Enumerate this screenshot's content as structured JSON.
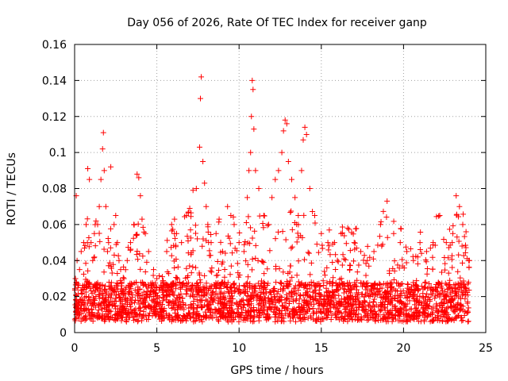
{
  "chart_data": {
    "type": "scatter",
    "title": "Day 056 of 2026, Rate Of TEC Index for receiver ganp",
    "xlabel": "GPS time / hours",
    "ylabel": "ROTI / TECUs",
    "xlim": [
      0,
      25
    ],
    "ylim": [
      0,
      0.16
    ],
    "x_ticks": [
      0,
      5,
      10,
      15,
      20,
      25
    ],
    "x_tick_labels": [
      "0",
      "5",
      "10",
      "15",
      "20",
      "25"
    ],
    "y_ticks": [
      0,
      0.02,
      0.04,
      0.06,
      0.08,
      0.1,
      0.12,
      0.14,
      0.16
    ],
    "y_tick_labels": [
      "0",
      "0.02",
      "0.04",
      "0.06",
      "0.08",
      "0.1",
      "0.12",
      "0.14",
      "0.16"
    ],
    "grid": true,
    "marker": "+",
    "color": "#ff0000",
    "series": [
      {
        "name": "ROTI",
        "description_points": "representative sample of dense per-satellite ROTI points, hours vs TECU/min",
        "x": [
          0.05,
          0.1,
          0.15,
          0.2,
          0.3,
          0.4,
          0.55,
          0.7,
          0.8,
          0.9,
          1.0,
          1.1,
          1.2,
          1.3,
          1.4,
          1.5,
          1.6,
          1.7,
          1.75,
          1.8,
          1.9,
          2.0,
          2.2,
          2.4,
          2.5,
          2.6,
          2.7,
          2.8,
          3.0,
          3.2,
          3.4,
          3.6,
          3.8,
          3.9,
          4.0,
          4.1,
          4.3,
          4.5,
          4.8,
          5.0,
          5.3,
          5.6,
          5.9,
          6.2,
          6.5,
          6.8,
          7.0,
          7.2,
          7.4,
          7.6,
          7.65,
          7.7,
          7.8,
          7.9,
          8.0,
          8.1,
          8.3,
          8.6,
          9.0,
          9.3,
          9.5,
          9.7,
          10.0,
          10.3,
          10.5,
          10.6,
          10.7,
          10.75,
          10.8,
          10.85,
          10.9,
          11.0,
          11.2,
          11.5,
          11.8,
          12.0,
          12.2,
          12.4,
          12.6,
          12.7,
          12.8,
          12.9,
          13.0,
          13.2,
          13.4,
          13.6,
          13.8,
          13.9,
          14.0,
          14.1,
          14.3,
          14.6,
          15.0,
          15.4,
          15.8,
          16.2,
          16.6,
          17.0,
          17.4,
          17.8,
          18.2,
          18.6,
          19.0,
          19.4,
          19.8,
          20.2,
          20.6,
          21.0,
          21.4,
          21.8,
          22.2,
          22.6,
          23.0,
          23.2,
          23.4,
          23.6,
          23.8,
          24.0
        ],
        "y": [
          0.03,
          0.076,
          0.04,
          0.025,
          0.035,
          0.045,
          0.05,
          0.06,
          0.091,
          0.085,
          0.05,
          0.04,
          0.055,
          0.062,
          0.06,
          0.07,
          0.085,
          0.102,
          0.111,
          0.09,
          0.07,
          0.045,
          0.092,
          0.06,
          0.065,
          0.05,
          0.04,
          0.035,
          0.03,
          0.04,
          0.05,
          0.06,
          0.088,
          0.086,
          0.076,
          0.063,
          0.055,
          0.045,
          0.035,
          0.03,
          0.025,
          0.045,
          0.06,
          0.055,
          0.05,
          0.065,
          0.069,
          0.079,
          0.08,
          0.103,
          0.13,
          0.142,
          0.095,
          0.083,
          0.07,
          0.06,
          0.05,
          0.055,
          0.045,
          0.07,
          0.065,
          0.06,
          0.05,
          0.045,
          0.075,
          0.09,
          0.1,
          0.12,
          0.14,
          0.135,
          0.113,
          0.09,
          0.08,
          0.065,
          0.06,
          0.075,
          0.085,
          0.09,
          0.1,
          0.112,
          0.118,
          0.116,
          0.095,
          0.085,
          0.075,
          0.065,
          0.09,
          0.107,
          0.114,
          0.11,
          0.08,
          0.065,
          0.055,
          0.05,
          0.05,
          0.055,
          0.058,
          0.05,
          0.045,
          0.04,
          0.045,
          0.06,
          0.073,
          0.055,
          0.05,
          0.045,
          0.04,
          0.05,
          0.045,
          0.05,
          0.065,
          0.05,
          0.055,
          0.076,
          0.07,
          0.06,
          0.056,
          0.04
        ]
      }
    ]
  }
}
